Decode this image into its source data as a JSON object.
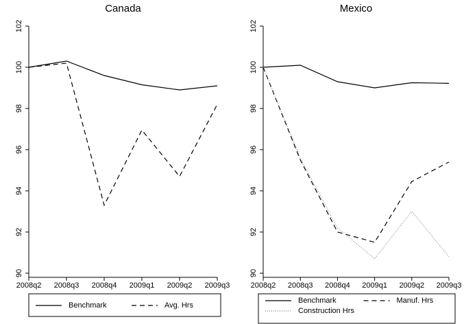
{
  "chart_data": [
    {
      "type": "line",
      "title": "Canada",
      "categories": [
        "2008q2",
        "2008q3",
        "2008q4",
        "2009q1",
        "2009q2",
        "2009q3"
      ],
      "series": [
        {
          "name": "Benchmark",
          "color": "#000000",
          "dash": "solid",
          "values": [
            100,
            100.3,
            99.6,
            99.15,
            98.9,
            99.1
          ]
        },
        {
          "name": "Avg. Hrs",
          "color": "#000000",
          "dash": "dashed",
          "values": [
            100,
            100.2,
            93.3,
            96.95,
            94.7,
            98.2
          ]
        }
      ],
      "ylim": [
        90,
        102
      ],
      "yticks": [
        90,
        92,
        94,
        96,
        98,
        100,
        102
      ],
      "legend": "bottom"
    },
    {
      "type": "line",
      "title": "Mexico",
      "categories": [
        "2008q2",
        "2008q3",
        "2008q4",
        "2009q1",
        "2009q2",
        "2009q3"
      ],
      "series": [
        {
          "name": "Benchmark",
          "color": "#000000",
          "dash": "solid",
          "values": [
            100,
            100.1,
            99.3,
            99.0,
            99.25,
            99.22
          ]
        },
        {
          "name": "Manuf. Hrs",
          "color": "#000000",
          "dash": "dashed",
          "values": [
            100,
            95.5,
            92.0,
            91.5,
            94.45,
            95.4
          ]
        },
        {
          "name": "Construction Hrs",
          "color": "#777777",
          "dash": "dotted",
          "values": [
            100,
            95.6,
            92.2,
            90.7,
            93.0,
            90.8
          ]
        }
      ],
      "ylim": [
        90,
        102
      ],
      "yticks": [
        90,
        92,
        94,
        96,
        98,
        100,
        102
      ],
      "legend": "bottom"
    }
  ]
}
